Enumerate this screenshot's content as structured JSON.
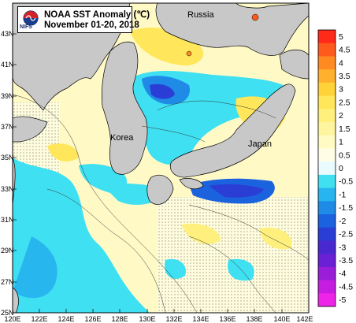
{
  "title": {
    "line1": "NOAA SST Anomaly (℃)",
    "line2": "November 01-20, 2018",
    "logo_text": "NIFS"
  },
  "labels": {
    "russia": "Russia",
    "korea": "Korea",
    "japan": "Japan"
  },
  "lat_ticks": [
    "43N",
    "41N",
    "39N",
    "37N",
    "35N",
    "33N",
    "31N",
    "29N",
    "27N",
    "25N"
  ],
  "lon_ticks": [
    "120E",
    "122E",
    "124E",
    "126E",
    "128E",
    "130E",
    "132E",
    "134E",
    "136E",
    "138E",
    "140E",
    "142E"
  ],
  "colorbar": {
    "labels": [
      "5",
      "4.5",
      "4",
      "3.5",
      "3",
      "2.5",
      "2",
      "1.5",
      "1",
      "0.5",
      "0",
      "-0.5",
      "-1",
      "-1.5",
      "-2",
      "-2.5",
      "-3",
      "-3.5",
      "-4",
      "-4.5",
      "-5"
    ],
    "colors": [
      "#ff2a1a",
      "#ff5a1e",
      "#ff8a22",
      "#ffb12e",
      "#ffd23a",
      "#ffe65a",
      "#fff07e",
      "#fff59e",
      "#fffbc2",
      "#fffde6",
      "#e8fbff",
      "#40e0f0",
      "#28b4ee",
      "#1f8be6",
      "#1a62de",
      "#2a3ed6",
      "#4a28d0",
      "#6a20d4",
      "#9a1ed8",
      "#c61ee0",
      "#ee24e8"
    ]
  },
  "legend_colors": {
    "land": "#c8c8c8",
    "sea_warm": "#fff9c6",
    "sea_cool": "#3ee0f2"
  }
}
